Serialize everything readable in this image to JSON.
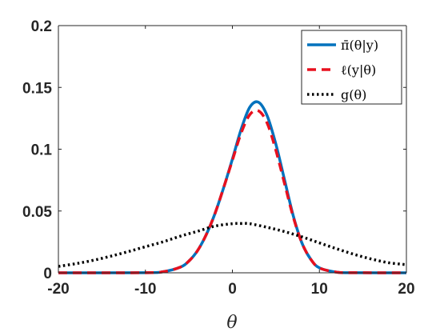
{
  "chart_data": {
    "type": "line",
    "xlabel": "θ",
    "ylabel": "",
    "xlim": [
      -20,
      20
    ],
    "ylim": [
      0,
      0.2
    ],
    "xticks": [
      -20,
      -10,
      0,
      10,
      20
    ],
    "yticks": [
      0,
      0.05,
      0.1,
      0.15,
      0.2
    ],
    "xtick_labels": [
      "-20",
      "-10",
      "0",
      "10",
      "20"
    ],
    "ytick_labels": [
      "0",
      "0.05",
      "0.1",
      "0.15",
      "0.2"
    ],
    "grid": false,
    "legend_position": "top-right",
    "series": [
      {
        "name": "π̄(θ|y)",
        "style": "solid",
        "color": "#0072BD",
        "x": [
          -20,
          -10,
          -8,
          -6,
          -5,
          -4,
          -3,
          -2,
          -1,
          0,
          1,
          2,
          3,
          4,
          5,
          6,
          7,
          8,
          9,
          10,
          12,
          14,
          20
        ],
        "y": [
          0,
          0.0001,
          0.0008,
          0.0045,
          0.0095,
          0.018,
          0.031,
          0.048,
          0.069,
          0.092,
          0.116,
          0.134,
          0.138,
          0.127,
          0.104,
          0.075,
          0.046,
          0.024,
          0.011,
          0.004,
          0.0005,
          0.0001,
          0
        ]
      },
      {
        "name": "ℓ(y|θ)",
        "style": "dashed",
        "color": "#E8101E",
        "x": [
          -20,
          -10,
          -8,
          -6,
          -5,
          -4,
          -3,
          -2,
          -1,
          0,
          1,
          2,
          3,
          4,
          5,
          6,
          7,
          8,
          9,
          10,
          12,
          14,
          20
        ],
        "y": [
          0,
          0.0001,
          0.0008,
          0.0045,
          0.0095,
          0.018,
          0.031,
          0.048,
          0.069,
          0.091,
          0.113,
          0.128,
          0.131,
          0.121,
          0.099,
          0.072,
          0.045,
          0.024,
          0.011,
          0.004,
          0.0005,
          0.0001,
          0
        ]
      },
      {
        "name": "g(θ)",
        "style": "dotted",
        "color": "#000000",
        "x": [
          -20,
          -18,
          -16,
          -14,
          -12,
          -10,
          -8,
          -6,
          -4,
          -2,
          0,
          1,
          2,
          4,
          6,
          8,
          10,
          12,
          14,
          16,
          18,
          20
        ],
        "y": [
          0.0052,
          0.0074,
          0.0101,
          0.0134,
          0.0171,
          0.0211,
          0.025,
          0.0296,
          0.0336,
          0.0378,
          0.0397,
          0.0399,
          0.0397,
          0.0368,
          0.0333,
          0.0291,
          0.0242,
          0.0194,
          0.0149,
          0.0111,
          0.0081,
          0.0066
        ]
      }
    ]
  }
}
